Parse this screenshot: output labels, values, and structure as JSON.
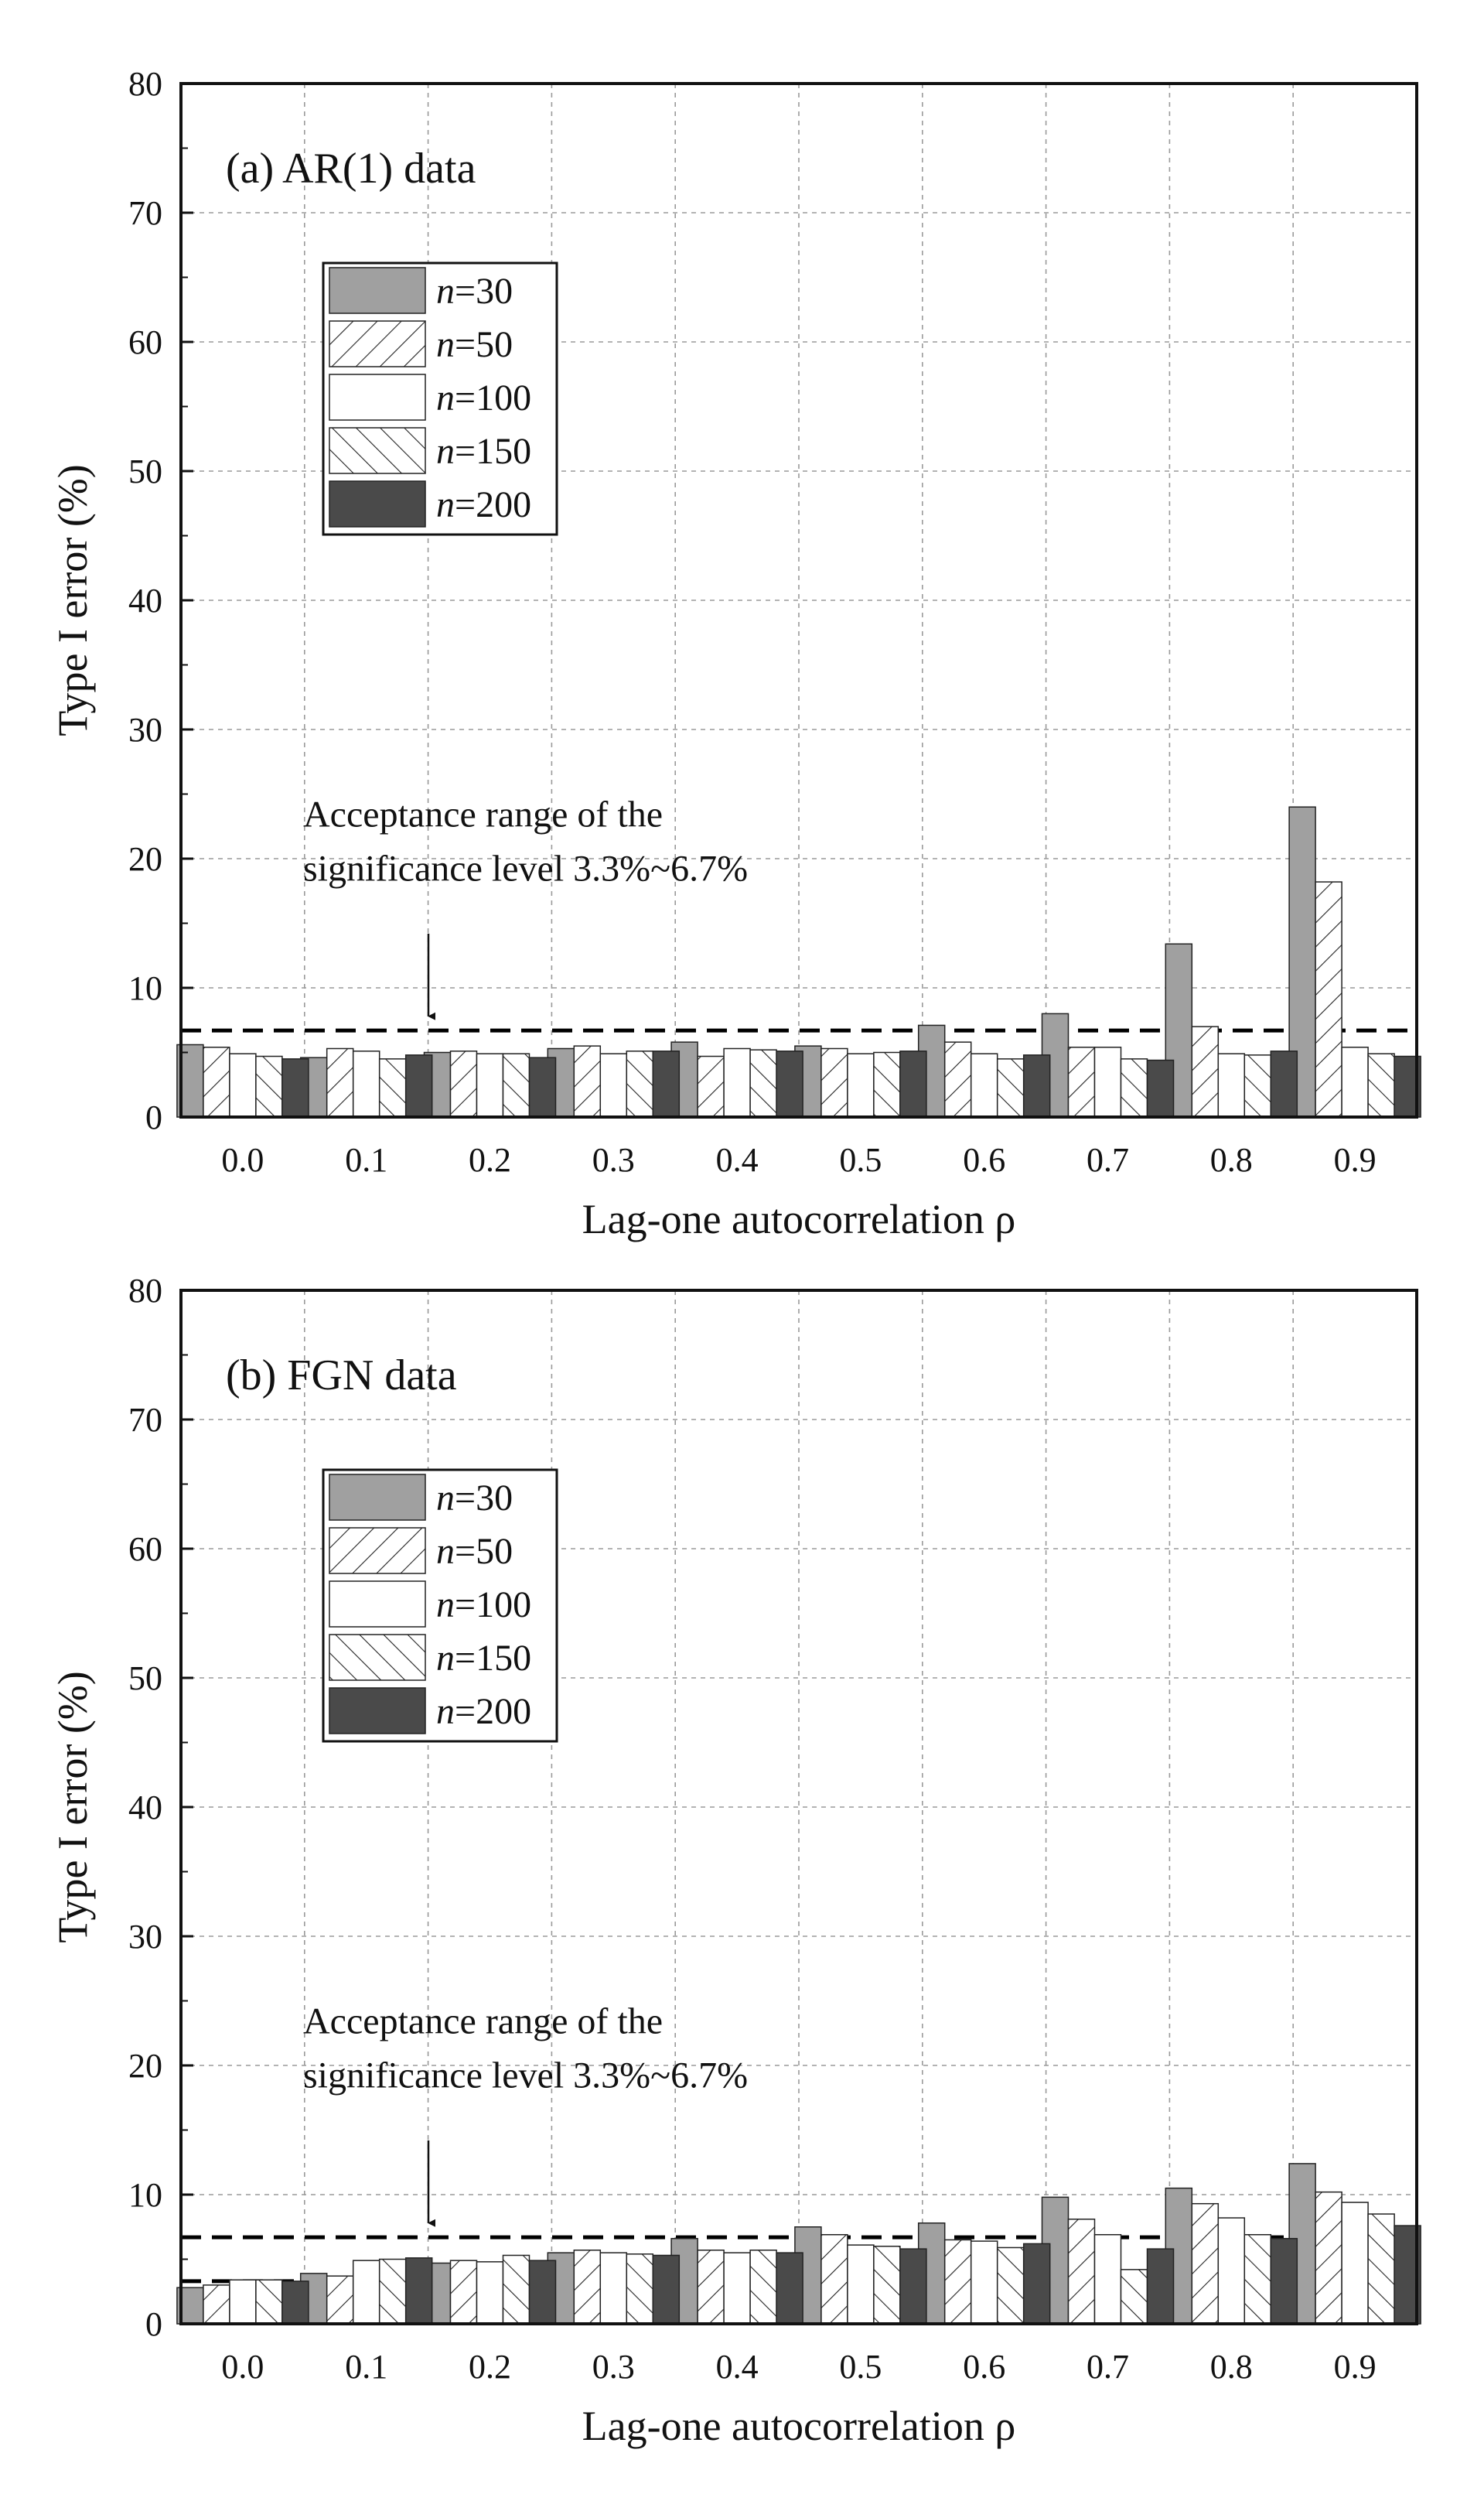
{
  "chart_data": [
    {
      "type": "bar",
      "title": "(a) AR(1) data",
      "xlabel": "Lag-one autocorrelation ρ",
      "ylabel": "Type I error (%)",
      "ylim": [
        0,
        80
      ],
      "yticks": [
        0,
        10,
        20,
        30,
        40,
        50,
        60,
        70,
        80
      ],
      "grid": true,
      "legend_position": "top-left",
      "categories": [
        "0.0",
        "0.1",
        "0.2",
        "0.3",
        "0.4",
        "0.5",
        "0.6",
        "0.7",
        "0.8",
        "0.9"
      ],
      "series": [
        {
          "name": "n=30",
          "n_symbol": "n",
          "n_value": "=30",
          "fill": "#a0a0a0",
          "pattern": "solid",
          "values": [
            5.6,
            4.6,
            5.0,
            5.3,
            5.8,
            5.5,
            7.1,
            8.0,
            13.4,
            24.0
          ]
        },
        {
          "name": "n=50",
          "n_symbol": "n",
          "n_value": "=50",
          "fill": "#ffffff",
          "pattern": "backslash",
          "values": [
            5.4,
            5.3,
            5.1,
            5.5,
            4.7,
            5.3,
            5.8,
            5.4,
            7.0,
            18.2
          ]
        },
        {
          "name": "n=100",
          "n_symbol": "n",
          "n_value": "=100",
          "fill": "#ffffff",
          "pattern": "none",
          "values": [
            4.9,
            5.1,
            4.9,
            4.9,
            5.3,
            4.9,
            4.9,
            5.4,
            4.9,
            5.4
          ]
        },
        {
          "name": "n=150",
          "n_symbol": "n",
          "n_value": "=150",
          "fill": "#ffffff",
          "pattern": "slash",
          "values": [
            4.7,
            4.5,
            4.9,
            5.1,
            5.2,
            5.0,
            4.5,
            4.5,
            4.8,
            4.9
          ]
        },
        {
          "name": "n=200",
          "n_symbol": "n",
          "n_value": "=200",
          "fill": "#4a4a4a",
          "pattern": "solid",
          "values": [
            4.5,
            4.8,
            4.6,
            5.1,
            5.1,
            5.1,
            4.8,
            4.4,
            5.1,
            4.7
          ]
        }
      ],
      "reference_lines": [
        3.3,
        6.7
      ],
      "annotation": {
        "line1": "Acceptance range of the",
        "line2": "significance level 3.3%~6.7%"
      }
    },
    {
      "type": "bar",
      "title": "(b) FGN data",
      "xlabel": "Lag-one autocorrelation ρ",
      "ylabel": "Type I error (%)",
      "ylim": [
        0,
        80
      ],
      "yticks": [
        0,
        10,
        20,
        30,
        40,
        50,
        60,
        70,
        80
      ],
      "grid": true,
      "legend_position": "top-left",
      "categories": [
        "0.0",
        "0.1",
        "0.2",
        "0.3",
        "0.4",
        "0.5",
        "0.6",
        "0.7",
        "0.8",
        "0.9"
      ],
      "series": [
        {
          "name": "n=30",
          "n_symbol": "n",
          "n_value": "=30",
          "fill": "#a0a0a0",
          "pattern": "solid",
          "values": [
            2.8,
            3.9,
            4.7,
            5.5,
            6.6,
            7.5,
            7.8,
            9.8,
            10.5,
            12.4
          ]
        },
        {
          "name": "n=50",
          "n_symbol": "n",
          "n_value": "=50",
          "fill": "#ffffff",
          "pattern": "backslash",
          "values": [
            3.0,
            3.7,
            4.9,
            5.7,
            5.7,
            6.9,
            6.5,
            8.1,
            9.3,
            10.2
          ]
        },
        {
          "name": "n=100",
          "n_symbol": "n",
          "n_value": "=100",
          "fill": "#ffffff",
          "pattern": "none",
          "values": [
            3.4,
            4.9,
            4.8,
            5.5,
            5.5,
            6.1,
            6.4,
            6.9,
            8.2,
            9.4
          ]
        },
        {
          "name": "n=150",
          "n_symbol": "n",
          "n_value": "=150",
          "fill": "#ffffff",
          "pattern": "slash",
          "values": [
            3.4,
            5.0,
            5.3,
            5.4,
            5.7,
            6.0,
            5.9,
            4.2,
            6.9,
            8.5
          ]
        },
        {
          "name": "n=200",
          "n_symbol": "n",
          "n_value": "=200",
          "fill": "#4a4a4a",
          "pattern": "solid",
          "values": [
            3.3,
            5.1,
            4.9,
            5.3,
            5.5,
            5.8,
            6.2,
            5.8,
            6.6,
            7.6
          ]
        }
      ],
      "reference_lines": [
        3.3,
        6.7
      ],
      "annotation": {
        "line1": "Acceptance range of the",
        "line2": "significance level 3.3%~6.7%"
      }
    }
  ]
}
